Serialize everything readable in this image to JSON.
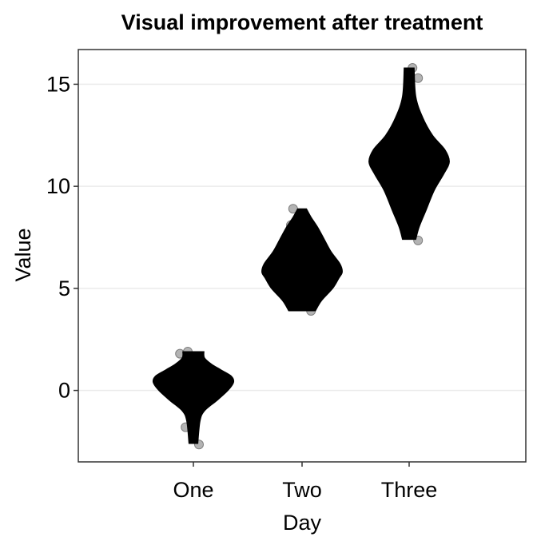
{
  "chart_data": {
    "type": "violin",
    "title": "Visual improvement after treatment",
    "xlabel": "Day",
    "ylabel": "Value",
    "categories": [
      "One",
      "Two",
      "Three"
    ],
    "ylim": [
      -3.5,
      16.7
    ],
    "yticks": [
      0,
      5,
      10,
      15
    ],
    "grid": {
      "horizontal_major": true,
      "vertical": false
    },
    "colors": {
      "violin": "#000000",
      "point_fill": "#b3b3b3",
      "point_stroke": "#7f7f7f",
      "grid": "#ebebeb",
      "panel_border": "#333333"
    },
    "violins": [
      {
        "category": "One",
        "min": -2.6,
        "max": 1.9,
        "profile": [
          [
            -2.6,
            0.08
          ],
          [
            -1.5,
            0.12
          ],
          [
            -1.0,
            0.2
          ],
          [
            -0.5,
            0.42
          ],
          [
            0.0,
            0.62
          ],
          [
            0.4,
            0.72
          ],
          [
            0.7,
            0.68
          ],
          [
            1.0,
            0.5
          ],
          [
            1.3,
            0.32
          ],
          [
            1.6,
            0.2
          ],
          [
            1.9,
            0.19
          ]
        ],
        "points": [
          [
            -0.12,
            1.8
          ],
          [
            -0.05,
            1.9
          ],
          [
            -0.07,
            -1.8
          ],
          [
            0.05,
            -2.65
          ]
        ]
      },
      {
        "category": "Two",
        "min": 3.9,
        "max": 8.9,
        "profile": [
          [
            3.9,
            0.24
          ],
          [
            4.4,
            0.35
          ],
          [
            5.0,
            0.55
          ],
          [
            5.5,
            0.66
          ],
          [
            5.8,
            0.72
          ],
          [
            6.2,
            0.68
          ],
          [
            6.8,
            0.52
          ],
          [
            7.4,
            0.4
          ],
          [
            8.0,
            0.28
          ],
          [
            8.5,
            0.16
          ],
          [
            8.9,
            0.08
          ]
        ],
        "points": [
          [
            -0.1,
            8.1
          ],
          [
            -0.08,
            8.9
          ],
          [
            0.09,
            8.0
          ],
          [
            0.08,
            3.9
          ]
        ]
      },
      {
        "category": "Three",
        "min": 7.4,
        "max": 15.8,
        "profile": [
          [
            7.4,
            0.12
          ],
          [
            8.0,
            0.18
          ],
          [
            8.8,
            0.3
          ],
          [
            9.8,
            0.45
          ],
          [
            10.6,
            0.62
          ],
          [
            11.2,
            0.72
          ],
          [
            11.8,
            0.64
          ],
          [
            12.5,
            0.42
          ],
          [
            13.4,
            0.24
          ],
          [
            14.4,
            0.12
          ],
          [
            15.8,
            0.09
          ]
        ],
        "points": [
          [
            -0.09,
            13.1
          ],
          [
            0.03,
            15.8
          ],
          [
            0.08,
            15.3
          ],
          [
            0.08,
            7.35
          ],
          [
            0.17,
            12.3
          ]
        ]
      }
    ]
  }
}
